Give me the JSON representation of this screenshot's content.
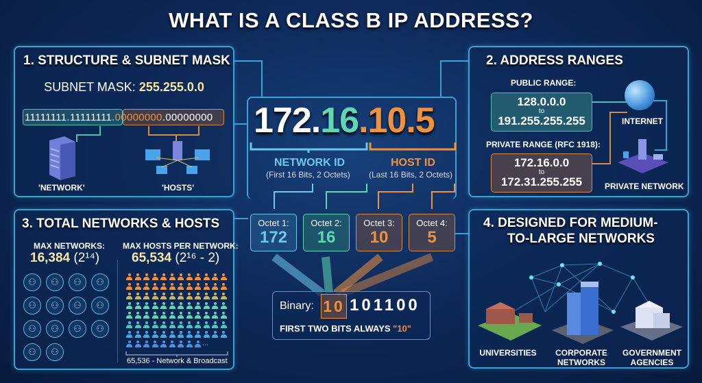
{
  "title": "WHAT IS A CLASS B IP ADDRESS?",
  "structure": {
    "heading": "1. STRUCTURE & SUBNET MASK",
    "mask_label": "SUBNET MASK:",
    "mask_value": "255.255.0.0",
    "bits": [
      "11111111.",
      "11111111.",
      "00000000",
      ".00000000"
    ],
    "network_label": "'NETWORK'",
    "hosts_label": "'HOSTS'"
  },
  "ranges": {
    "heading": "2. ADDRESS RANGES",
    "public_label": "PUBLIC RANGE:",
    "public_start": "128.0.0.0",
    "public_to": "to",
    "public_end": "191.255.255.255",
    "private_label": "PRIVATE RANGE (RFC 1918):",
    "private_start": "172.16.0.0",
    "private_to": "to",
    "private_end": "172.31.255.255",
    "internet_label": "INTERNET",
    "private_network_label": "PRIVATE NETWORK"
  },
  "ip": {
    "parts": [
      "172.",
      "16",
      ".",
      "10.5"
    ],
    "network_id": "NETWORK ID",
    "network_desc": "(First 16 Bits, 2 Octets)",
    "host_id": "HOST ID",
    "host_desc": "(Last 16 Bits, 2 Octets)"
  },
  "octets": [
    {
      "label": "Octet 1:",
      "value": "172"
    },
    {
      "label": "Octet 2:",
      "value": "16"
    },
    {
      "label": "Octet 3:",
      "value": "10"
    },
    {
      "label": "Octet 4:",
      "value": "5"
    }
  ],
  "binary": {
    "label": "Binary:",
    "first_bits": "10",
    "rest_bits": "101100",
    "note": "FIRST TWO BITS ALWAYS ",
    "note_value": "\"10\""
  },
  "totals": {
    "heading": "3. TOTAL NETWORKS & HOSTS",
    "networks_label": "MAX NETWORKS:",
    "networks_value": "16,384",
    "networks_formula": "(2¹⁴)",
    "hosts_label": "MAX HOSTS PER NETWORK:",
    "hosts_value": "65,534",
    "hosts_formula": "(2¹⁶ - 2)",
    "ellipsis": "...",
    "hosts_note": "65,536 - Network & Broadcast",
    "network_icon_count": 14,
    "host_rows": 8,
    "host_cols": 12,
    "host_last_row": 9
  },
  "designed": {
    "heading_line1": "4. DESIGNED FOR MEDIUM-",
    "heading_line2": "TO-LARGE NETWORKS",
    "items": [
      {
        "line1": "UNIVERSITIES",
        "line2": ""
      },
      {
        "line1": "CORPORATE",
        "line2": "NETWORKS"
      },
      {
        "line1": "GOVERNMENT",
        "line2": "AGENCIES"
      }
    ]
  },
  "colors": {
    "network": "#6ec8ec",
    "octet2": "#5fd6b4",
    "host": "#f0923d",
    "panel_border": "#3aa3d6",
    "highlight": "#f7e7a8"
  }
}
